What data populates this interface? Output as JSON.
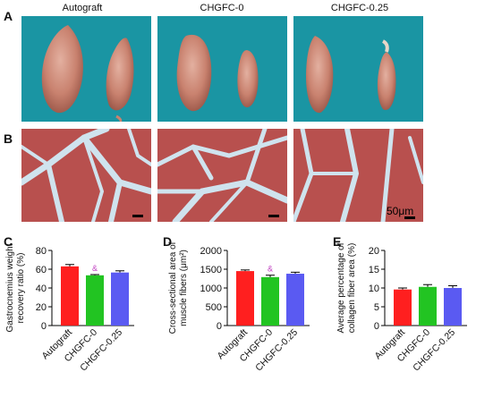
{
  "panels": {
    "A": "A",
    "B": "B",
    "C": "C",
    "D": "D",
    "E": "E"
  },
  "groups": [
    "Autograft",
    "CHGFC-0",
    "CHGFC-0.25"
  ],
  "scale_bar_label": "50μm",
  "colors": {
    "autograft": "#ff1f1f",
    "chgfc0": "#22c422",
    "chgfc025": "#5a5af2",
    "background_photo": "#1a95a3",
    "stain_muscle": "#b8504e",
    "stain_collagen": "#cfe3ee"
  },
  "chart_data": [
    {
      "panel": "C",
      "type": "bar",
      "categories": [
        "Autograft",
        "CHGFC-0",
        "CHGFC-0.25"
      ],
      "values": [
        63,
        53.5,
        56.5
      ],
      "errors": [
        2,
        0.8,
        1.8
      ],
      "significance": [
        "",
        "&",
        ""
      ],
      "ylabel": "Gastrocnemius weight recovery ratio (%)",
      "ylabel_lines": [
        "Gastrocnemius weight",
        "recovery ratio (%)"
      ],
      "ylim": [
        0,
        80
      ],
      "yticks": [
        0,
        20,
        40,
        60,
        80
      ]
    },
    {
      "panel": "D",
      "type": "bar",
      "categories": [
        "Autograft",
        "CHGFC-0",
        "CHGFC-0.25"
      ],
      "values": [
        1450,
        1290,
        1380
      ],
      "errors": [
        30,
        50,
        40
      ],
      "significance": [
        "",
        "&",
        ""
      ],
      "ylabel": "Cross-sectional area of muscle fibers (μm²)",
      "ylabel_lines": [
        "Cross-sectional area of",
        "muscle fibers (μm²)"
      ],
      "ylim": [
        0,
        2000
      ],
      "yticks": [
        0,
        500,
        1000,
        1500,
        2000
      ]
    },
    {
      "panel": "E",
      "type": "bar",
      "categories": [
        "Autograft",
        "CHGFC-0",
        "CHGFC-0.25"
      ],
      "values": [
        9.6,
        10.3,
        10
      ],
      "errors": [
        0.4,
        0.6,
        0.6
      ],
      "significance": [
        "",
        "",
        ""
      ],
      "ylabel": "Average percentage of collagen fiber area (%)",
      "ylabel_lines": [
        "Average percentage of",
        "collagen fiber area (%)"
      ],
      "ylim": [
        0,
        20
      ],
      "yticks": [
        0,
        5,
        10,
        15,
        20
      ]
    }
  ]
}
